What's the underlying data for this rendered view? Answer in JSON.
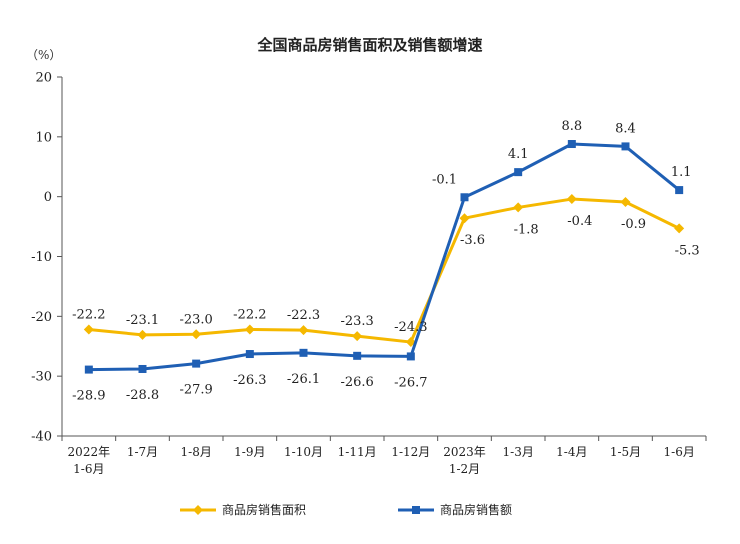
{
  "chart_data": {
    "type": "line",
    "title": "全国商品房销售面积及销售额增速",
    "unit_label": "（%）",
    "categories": [
      [
        "2022年",
        "1-6月"
      ],
      [
        "1-7月"
      ],
      [
        "1-8月"
      ],
      [
        "1-9月"
      ],
      [
        "1-10月"
      ],
      [
        "1-11月"
      ],
      [
        "1-12月"
      ],
      [
        "2023年",
        "1-2月"
      ],
      [
        "1-3月"
      ],
      [
        "1-4月"
      ],
      [
        "1-5月"
      ],
      [
        "1-6月"
      ]
    ],
    "ylim": [
      -40,
      20
    ],
    "yticks": [
      20,
      10,
      0,
      -10,
      -20,
      -30,
      -40
    ],
    "legend_position": "bottom",
    "series": [
      {
        "name": "商品房销售面积",
        "color": "#F5B800",
        "marker": "diamond",
        "values": [
          -22.2,
          -23.1,
          -23.0,
          -22.2,
          -22.3,
          -23.3,
          -24.3,
          -3.6,
          -1.8,
          -0.4,
          -0.9,
          -5.3
        ],
        "labels": [
          "-22.2",
          "-23.1",
          "-23.0",
          "-22.2",
          "-22.3",
          "-23.3",
          "-24.3",
          "-3.6",
          "-1.8",
          "-0.4",
          "-0.9",
          "-5.3"
        ]
      },
      {
        "name": "商品房销售额",
        "color": "#1F5FB4",
        "marker": "square",
        "values": [
          -28.9,
          -28.8,
          -27.9,
          -26.3,
          -26.1,
          -26.6,
          -26.7,
          -0.1,
          4.1,
          8.8,
          8.4,
          1.1
        ],
        "labels": [
          "-28.9",
          "-28.8",
          "-27.9",
          "-26.3",
          "-26.1",
          "-26.6",
          "-26.7",
          "-0.1",
          "4.1",
          "8.8",
          "8.4",
          "1.1"
        ]
      }
    ]
  }
}
